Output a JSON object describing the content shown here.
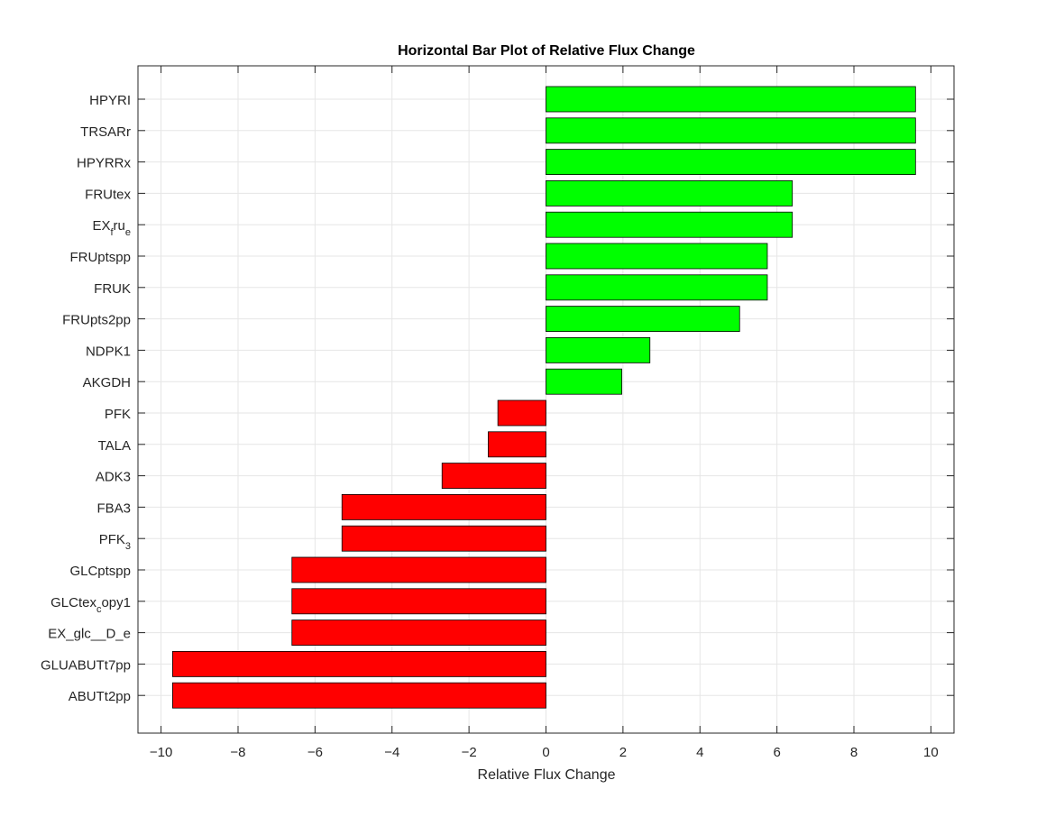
{
  "chart_data": {
    "type": "bar",
    "orientation": "horizontal",
    "title": "Horizontal Bar Plot of Relative Flux Change",
    "xlabel": "Relative Flux Change",
    "ylabel": "",
    "xlim": [
      -10.6,
      10.6
    ],
    "xticks": [
      -10,
      -8,
      -6,
      -4,
      -2,
      0,
      2,
      4,
      6,
      8,
      10
    ],
    "grid": true,
    "categories": [
      {
        "base": "HPYRI",
        "sub": ""
      },
      {
        "base": "TRSARr",
        "sub": ""
      },
      {
        "base": "HPYRRx",
        "sub": ""
      },
      {
        "base": "FRUtex",
        "sub": ""
      },
      {
        "base": "EX",
        "sub": "f",
        "mid": "ru",
        "sub2": "e"
      },
      {
        "base": "FRUptspp",
        "sub": ""
      },
      {
        "base": "FRUK",
        "sub": ""
      },
      {
        "base": "FRUpts2pp",
        "sub": ""
      },
      {
        "base": "NDPK1",
        "sub": ""
      },
      {
        "base": "AKGDH",
        "sub": ""
      },
      {
        "base": "PFK",
        "sub": ""
      },
      {
        "base": "TALA",
        "sub": ""
      },
      {
        "base": "ADK3",
        "sub": ""
      },
      {
        "base": "FBA3",
        "sub": ""
      },
      {
        "base": "PFK",
        "sub": "3"
      },
      {
        "base": "GLCptspp",
        "sub": ""
      },
      {
        "base": "GLCtex",
        "sub": "c",
        "mid": "opy1",
        "sub2": ""
      },
      {
        "base": "EX_glc__D_e",
        "sub": ""
      },
      {
        "base": "GLUABUTt7pp",
        "sub": ""
      },
      {
        "base": "ABUTt2pp",
        "sub": ""
      }
    ],
    "values": [
      9.6,
      9.6,
      9.6,
      6.4,
      6.4,
      5.75,
      5.75,
      5.03,
      2.7,
      1.97,
      -1.25,
      -1.5,
      -2.7,
      -5.3,
      -5.3,
      -6.6,
      -6.6,
      -6.6,
      -9.7,
      -9.7
    ],
    "colors": {
      "positive": "#00ff00",
      "negative": "#ff0000",
      "edge": "#000000",
      "grid": "#e6e6e6",
      "axis": "#262626"
    }
  }
}
